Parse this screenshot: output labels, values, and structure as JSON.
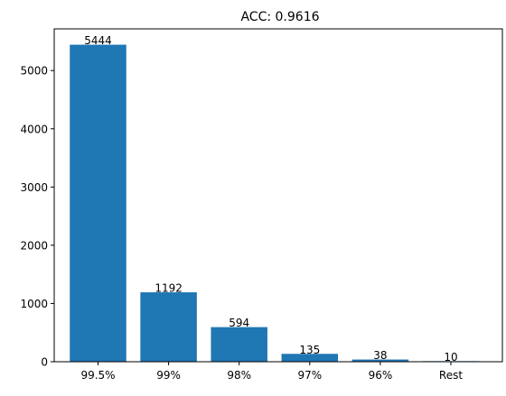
{
  "chart_data": {
    "type": "bar",
    "title": "ACC: 0.9616",
    "xlabel": "",
    "ylabel": "",
    "categories": [
      "99.5%",
      "99%",
      "98%",
      "97%",
      "96%",
      "Rest"
    ],
    "values": [
      5444,
      1192,
      594,
      135,
      38,
      10
    ],
    "data_labels": [
      "5444",
      "1192",
      "594",
      "135",
      "38",
      "10"
    ],
    "ylim": [
      0,
      5716
    ],
    "yticks": [
      0,
      1000,
      2000,
      3000,
      4000,
      5000
    ],
    "ytick_labels": [
      "0",
      "1000",
      "2000",
      "3000",
      "4000",
      "5000"
    ],
    "grid": false,
    "legend": "none",
    "bar_color": "#1f77b4"
  }
}
